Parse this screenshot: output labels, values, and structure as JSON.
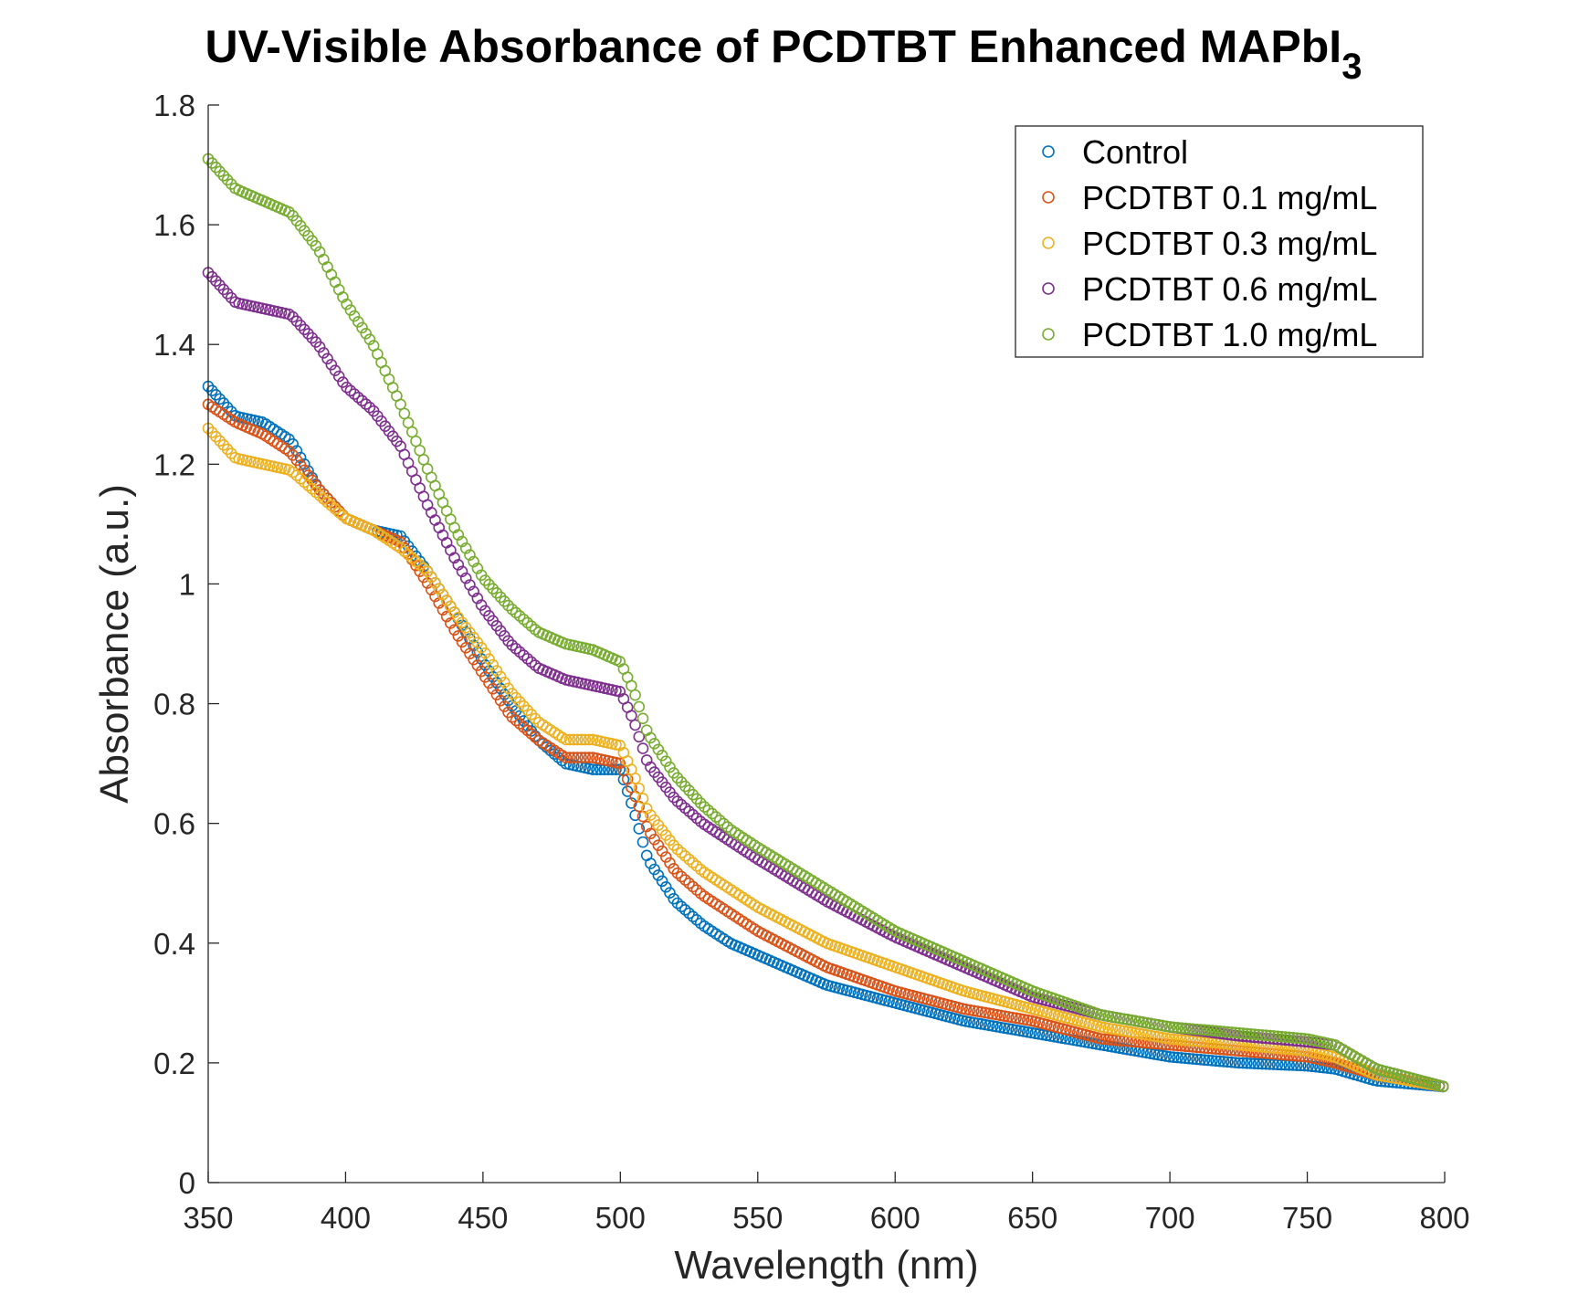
{
  "chart_data": {
    "type": "scatter",
    "title": "UV-Visible Absorbance of PCDTBT Enhanced MAPbI",
    "title_subscript": "3",
    "xlabel": "Wavelength (nm)",
    "ylabel": "Absorbance (a.u.)",
    "xlim": [
      350,
      800
    ],
    "ylim": [
      0,
      1.8
    ],
    "xticks": [
      350,
      400,
      450,
      500,
      550,
      600,
      650,
      700,
      750,
      800
    ],
    "xtick_labels": [
      "350",
      "400",
      "450",
      "500",
      "550",
      "600",
      "650",
      "700",
      "750",
      "800"
    ],
    "yticks": [
      0,
      0.2,
      0.4,
      0.6,
      0.8,
      1.0,
      1.2,
      1.4,
      1.6,
      1.8
    ],
    "ytick_labels": [
      "0",
      "0.2",
      "0.4",
      "0.6",
      "0.8",
      "1",
      "1.2",
      "1.4",
      "1.6",
      "1.8"
    ],
    "grid": false,
    "legend_position": "top-right",
    "marker": "open-circle",
    "series": [
      {
        "name": "Control",
        "color": "#0072BD",
        "x": [
          350,
          360,
          370,
          380,
          390,
          400,
          410,
          420,
          430,
          440,
          450,
          460,
          470,
          480,
          490,
          500,
          505,
          510,
          520,
          530,
          540,
          550,
          575,
          600,
          625,
          650,
          675,
          700,
          725,
          750,
          760,
          775,
          800
        ],
        "y": [
          1.33,
          1.28,
          1.27,
          1.24,
          1.16,
          1.11,
          1.09,
          1.08,
          1.02,
          0.95,
          0.87,
          0.8,
          0.74,
          0.7,
          0.69,
          0.69,
          0.62,
          0.54,
          0.47,
          0.43,
          0.4,
          0.38,
          0.33,
          0.3,
          0.27,
          0.25,
          0.23,
          0.21,
          0.2,
          0.195,
          0.19,
          0.17,
          0.16
        ]
      },
      {
        "name": "PCDTBT 0.1 mg/mL",
        "color": "#D95319",
        "x": [
          350,
          360,
          370,
          380,
          390,
          400,
          410,
          420,
          430,
          440,
          450,
          460,
          470,
          480,
          490,
          500,
          505,
          510,
          520,
          530,
          540,
          550,
          575,
          600,
          625,
          650,
          675,
          700,
          725,
          750,
          760,
          775,
          800
        ],
        "y": [
          1.3,
          1.27,
          1.25,
          1.22,
          1.16,
          1.11,
          1.09,
          1.07,
          1.0,
          0.92,
          0.85,
          0.78,
          0.74,
          0.71,
          0.71,
          0.7,
          0.65,
          0.59,
          0.52,
          0.48,
          0.45,
          0.42,
          0.36,
          0.32,
          0.29,
          0.27,
          0.24,
          0.23,
          0.22,
          0.21,
          0.2,
          0.18,
          0.16
        ]
      },
      {
        "name": "PCDTBT 0.3 mg/mL",
        "color": "#EDB120",
        "x": [
          350,
          360,
          370,
          380,
          390,
          400,
          410,
          420,
          430,
          440,
          450,
          460,
          470,
          480,
          490,
          500,
          505,
          510,
          520,
          530,
          540,
          550,
          575,
          600,
          625,
          650,
          675,
          700,
          725,
          750,
          760,
          775,
          800
        ],
        "y": [
          1.26,
          1.21,
          1.2,
          1.19,
          1.15,
          1.11,
          1.09,
          1.06,
          1.02,
          0.95,
          0.89,
          0.82,
          0.77,
          0.74,
          0.74,
          0.73,
          0.68,
          0.62,
          0.56,
          0.52,
          0.49,
          0.46,
          0.4,
          0.36,
          0.32,
          0.29,
          0.26,
          0.24,
          0.23,
          0.22,
          0.21,
          0.18,
          0.16
        ]
      },
      {
        "name": "PCDTBT 0.6 mg/mL",
        "color": "#7E2F8E",
        "x": [
          350,
          360,
          370,
          380,
          390,
          400,
          410,
          420,
          430,
          440,
          450,
          460,
          470,
          480,
          490,
          500,
          505,
          510,
          520,
          530,
          540,
          550,
          575,
          600,
          625,
          650,
          675,
          700,
          725,
          750,
          760,
          775,
          800
        ],
        "y": [
          1.52,
          1.47,
          1.46,
          1.45,
          1.4,
          1.33,
          1.29,
          1.23,
          1.13,
          1.04,
          0.96,
          0.9,
          0.86,
          0.84,
          0.83,
          0.82,
          0.77,
          0.7,
          0.64,
          0.6,
          0.57,
          0.54,
          0.47,
          0.41,
          0.36,
          0.31,
          0.28,
          0.26,
          0.245,
          0.235,
          0.23,
          0.19,
          0.16
        ]
      },
      {
        "name": "PCDTBT 1.0 mg/mL",
        "color": "#77AC30",
        "x": [
          350,
          360,
          370,
          380,
          390,
          400,
          410,
          420,
          430,
          440,
          450,
          460,
          470,
          480,
          490,
          500,
          505,
          510,
          520,
          530,
          540,
          550,
          575,
          600,
          625,
          650,
          675,
          700,
          725,
          750,
          760,
          775,
          800
        ],
        "y": [
          1.71,
          1.66,
          1.64,
          1.62,
          1.56,
          1.47,
          1.4,
          1.3,
          1.19,
          1.09,
          1.01,
          0.96,
          0.92,
          0.9,
          0.89,
          0.87,
          0.82,
          0.75,
          0.68,
          0.63,
          0.59,
          0.56,
          0.49,
          0.42,
          0.37,
          0.32,
          0.28,
          0.26,
          0.25,
          0.24,
          0.23,
          0.19,
          0.16
        ]
      }
    ]
  }
}
